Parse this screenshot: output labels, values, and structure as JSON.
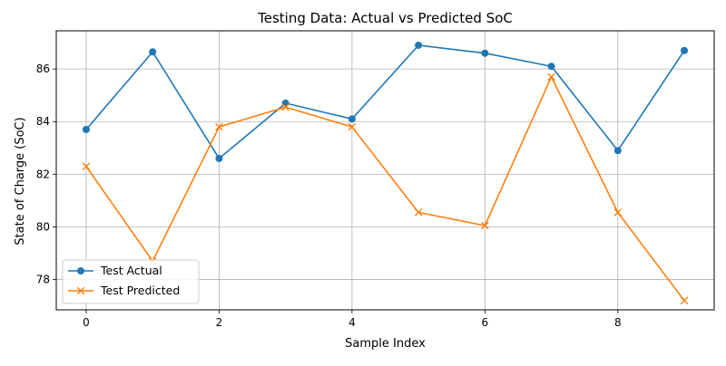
{
  "chart_data": {
    "type": "line",
    "title": "Testing Data: Actual vs Predicted SoC",
    "xlabel": "Sample Index",
    "ylabel": "State of Charge (SoC)",
    "x": [
      0,
      1,
      2,
      3,
      4,
      5,
      6,
      7,
      8,
      9
    ],
    "xlim": [
      -0.45,
      9.45
    ],
    "ylim": [
      76.85,
      87.45
    ],
    "xticks": [
      0,
      2,
      4,
      6,
      8
    ],
    "yticks": [
      78,
      80,
      82,
      84,
      86
    ],
    "grid": true,
    "legend_position": "lower-left",
    "series": [
      {
        "name": "Test Actual",
        "marker": "circle",
        "color": "#1f77b4",
        "values": [
          83.7,
          86.65,
          82.6,
          84.7,
          84.1,
          86.9,
          86.6,
          86.1,
          82.9,
          86.7
        ]
      },
      {
        "name": "Test Predicted",
        "marker": "x",
        "color": "#ff7f0e",
        "values": [
          82.3,
          78.7,
          83.8,
          84.55,
          83.8,
          80.55,
          80.05,
          85.7,
          80.55,
          77.2
        ]
      }
    ]
  }
}
